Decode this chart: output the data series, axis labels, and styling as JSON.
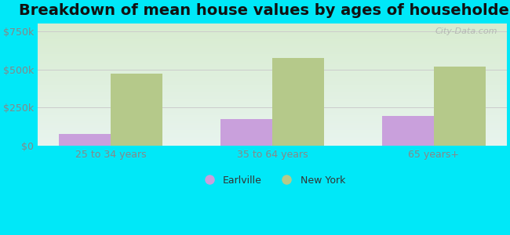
{
  "title": "Breakdown of mean house values by ages of householders",
  "categories": [
    "25 to 34 years",
    "35 to 64 years",
    "65 years+"
  ],
  "earlville_values": [
    75000,
    175000,
    195000
  ],
  "newyork_values": [
    470000,
    575000,
    520000
  ],
  "earlville_color": "#c9a0dc",
  "newyork_color": "#b5c98a",
  "ylim": [
    0,
    800000
  ],
  "yticks": [
    0,
    250000,
    500000,
    750000
  ],
  "ytick_labels": [
    "$0",
    "$250k",
    "$500k",
    "$750k"
  ],
  "legend_earlville": "Earlville",
  "legend_newyork": "New York",
  "background_outer": "#00e8f8",
  "background_plot_top": "#e8f4ee",
  "background_plot_bottom": "#d8ecd0",
  "bar_width": 0.32,
  "title_fontsize": 14,
  "watermark": "City-Data.com",
  "tick_color": "#888888",
  "grid_color": "#cccccc"
}
